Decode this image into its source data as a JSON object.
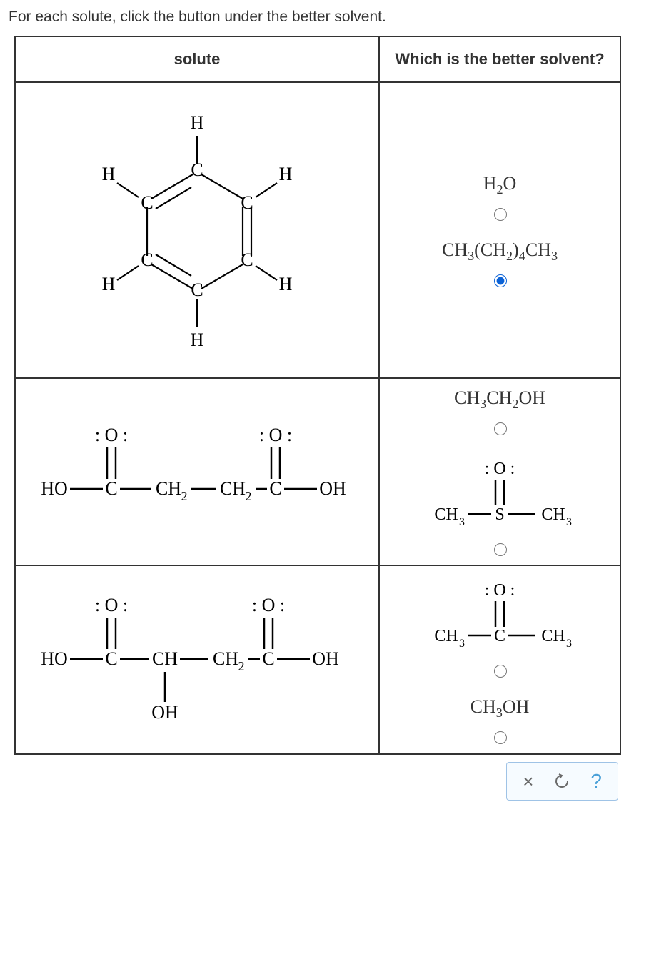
{
  "instruction": "For each solute, click the button under the better solvent.",
  "headers": {
    "solute": "solute",
    "solvent": "Which is the better solvent?"
  },
  "rows": [
    {
      "solute": {
        "type": "benzene_explicit"
      },
      "options": [
        {
          "formula_html": "H<span class='sub'>2</span>O",
          "selected": false
        },
        {
          "formula_html": "CH<span class='sub'>3</span>(CH<span class='sub'>2</span>)<span class='sub'>4</span>CH<span class='sub'>3</span>",
          "selected": true
        }
      ]
    },
    {
      "solute": {
        "type": "succinic_acid"
      },
      "options": [
        {
          "formula_html": "CH<span class='sub'>3</span>CH<span class='sub'>2</span>OH",
          "selected": false
        },
        {
          "svg": "dmso",
          "selected": false
        }
      ]
    },
    {
      "solute": {
        "type": "malic_acid"
      },
      "options": [
        {
          "svg": "acetone",
          "selected": false
        },
        {
          "formula_html": "CH<span class='sub'>3</span>OH",
          "selected": false
        }
      ]
    }
  ],
  "toolbar": {
    "close": "×",
    "reset": "↺",
    "help": "?"
  },
  "colors": {
    "border": "#333333",
    "accent": "#0b62d6",
    "toolbar_border": "#9fc3e6"
  }
}
